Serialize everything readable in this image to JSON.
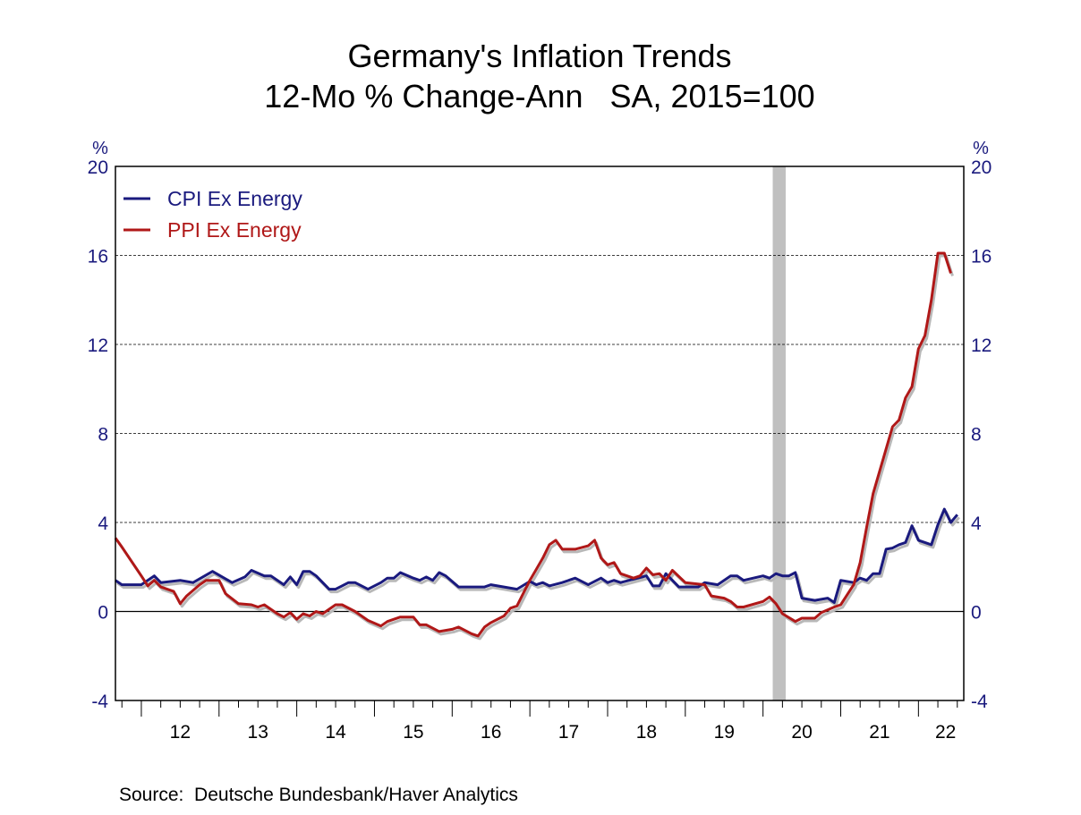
{
  "chart_data": {
    "type": "line",
    "title": "Germany's Inflation Trends",
    "subtitle": "12-Mo % Change-Ann   SA, 2015=100",
    "ylabel_left": "%",
    "ylabel_right": "%",
    "ylim": [
      -4,
      20
    ],
    "yticks": [
      -4,
      0,
      4,
      8,
      12,
      16,
      20
    ],
    "xlim": [
      "2011-09",
      "2022-08"
    ],
    "xtick_labels": [
      "12",
      "13",
      "14",
      "15",
      "16",
      "17",
      "18",
      "19",
      "20",
      "21",
      "22"
    ],
    "grid": "horizontal dashed",
    "legend": "top-left",
    "recession_shading": [
      "2020-03",
      "2020-04"
    ],
    "source": "Source:  Deutsche Bundesbank/Haver Analytics",
    "colors": {
      "cpi": "#1a1a7e",
      "ppi": "#b01818",
      "axis_text": "#1a1a7e",
      "shading": "#c0c0c0"
    },
    "series": [
      {
        "name": "CPI Ex Energy",
        "points": [
          [
            "2011-09",
            1.4
          ],
          [
            "2011-10",
            1.2
          ],
          [
            "2012-01",
            1.2
          ],
          [
            "2012-03",
            1.6
          ],
          [
            "2012-04",
            1.3
          ],
          [
            "2012-07",
            1.4
          ],
          [
            "2012-09",
            1.3
          ],
          [
            "2012-12",
            1.8
          ],
          [
            "2013-03",
            1.3
          ],
          [
            "2013-05",
            1.55
          ],
          [
            "2013-06",
            1.85
          ],
          [
            "2013-08",
            1.6
          ],
          [
            "2013-09",
            1.6
          ],
          [
            "2013-11",
            1.2
          ],
          [
            "2013-12",
            1.55
          ],
          [
            "2014-01",
            1.2
          ],
          [
            "2014-02",
            1.8
          ],
          [
            "2014-03",
            1.8
          ],
          [
            "2014-04",
            1.6
          ],
          [
            "2014-06",
            1.0
          ],
          [
            "2014-07",
            1.0
          ],
          [
            "2014-09",
            1.3
          ],
          [
            "2014-10",
            1.3
          ],
          [
            "2014-12",
            1.0
          ],
          [
            "2015-02",
            1.3
          ],
          [
            "2015-03",
            1.5
          ],
          [
            "2015-04",
            1.5
          ],
          [
            "2015-05",
            1.75
          ],
          [
            "2015-07",
            1.5
          ],
          [
            "2015-08",
            1.4
          ],
          [
            "2015-09",
            1.55
          ],
          [
            "2015-10",
            1.4
          ],
          [
            "2015-11",
            1.75
          ],
          [
            "2015-12",
            1.6
          ],
          [
            "2016-02",
            1.1
          ],
          [
            "2016-06",
            1.1
          ],
          [
            "2016-07",
            1.2
          ],
          [
            "2016-09",
            1.1
          ],
          [
            "2016-11",
            1.0
          ],
          [
            "2017-01",
            1.35
          ],
          [
            "2017-02",
            1.2
          ],
          [
            "2017-03",
            1.3
          ],
          [
            "2017-04",
            1.15
          ],
          [
            "2017-06",
            1.3
          ],
          [
            "2017-08",
            1.5
          ],
          [
            "2017-10",
            1.2
          ],
          [
            "2017-12",
            1.5
          ],
          [
            "2018-01",
            1.3
          ],
          [
            "2018-02",
            1.4
          ],
          [
            "2018-03",
            1.3
          ],
          [
            "2018-05",
            1.45
          ],
          [
            "2018-07",
            1.6
          ],
          [
            "2018-08",
            1.15
          ],
          [
            "2018-09",
            1.15
          ],
          [
            "2018-10",
            1.7
          ],
          [
            "2018-12",
            1.1
          ],
          [
            "2019-03",
            1.1
          ],
          [
            "2019-04",
            1.3
          ],
          [
            "2019-06",
            1.2
          ],
          [
            "2019-08",
            1.6
          ],
          [
            "2019-09",
            1.6
          ],
          [
            "2019-10",
            1.4
          ],
          [
            "2020-01",
            1.6
          ],
          [
            "2020-02",
            1.5
          ],
          [
            "2020-03",
            1.7
          ],
          [
            "2020-04",
            1.6
          ],
          [
            "2020-05",
            1.6
          ],
          [
            "2020-06",
            1.75
          ],
          [
            "2020-07",
            0.6
          ],
          [
            "2020-09",
            0.5
          ],
          [
            "2020-11",
            0.6
          ],
          [
            "2020-12",
            0.4
          ],
          [
            "2021-01",
            1.4
          ],
          [
            "2021-03",
            1.3
          ],
          [
            "2021-04",
            1.5
          ],
          [
            "2021-05",
            1.4
          ],
          [
            "2021-06",
            1.7
          ],
          [
            "2021-07",
            1.7
          ],
          [
            "2021-08",
            2.8
          ],
          [
            "2021-09",
            2.85
          ],
          [
            "2021-10",
            3.0
          ],
          [
            "2021-11",
            3.1
          ],
          [
            "2021-12",
            3.85
          ],
          [
            "2022-01",
            3.2
          ],
          [
            "2022-02",
            3.1
          ],
          [
            "2022-03",
            3.0
          ],
          [
            "2022-04",
            3.9
          ],
          [
            "2022-05",
            4.6
          ],
          [
            "2022-06",
            4.0
          ],
          [
            "2022-07",
            4.35
          ]
        ]
      },
      {
        "name": "PPI Ex Energy",
        "points": [
          [
            "2011-09",
            3.3
          ],
          [
            "2011-10",
            2.9
          ],
          [
            "2012-01",
            1.6
          ],
          [
            "2012-02",
            1.15
          ],
          [
            "2012-03",
            1.4
          ],
          [
            "2012-04",
            1.1
          ],
          [
            "2012-06",
            0.9
          ],
          [
            "2012-07",
            0.35
          ],
          [
            "2012-08",
            0.7
          ],
          [
            "2012-10",
            1.2
          ],
          [
            "2012-11",
            1.4
          ],
          [
            "2013-01",
            1.4
          ],
          [
            "2013-02",
            0.8
          ],
          [
            "2013-04",
            0.35
          ],
          [
            "2013-06",
            0.3
          ],
          [
            "2013-07",
            0.2
          ],
          [
            "2013-08",
            0.3
          ],
          [
            "2013-10",
            -0.1
          ],
          [
            "2013-11",
            -0.25
          ],
          [
            "2013-12",
            -0.05
          ],
          [
            "2014-01",
            -0.35
          ],
          [
            "2014-02",
            -0.1
          ],
          [
            "2014-03",
            -0.2
          ],
          [
            "2014-04",
            0.0
          ],
          [
            "2014-05",
            -0.1
          ],
          [
            "2014-07",
            0.3
          ],
          [
            "2014-08",
            0.3
          ],
          [
            "2014-10",
            0.0
          ],
          [
            "2014-12",
            -0.4
          ],
          [
            "2015-02",
            -0.65
          ],
          [
            "2015-03",
            -0.45
          ],
          [
            "2015-05",
            -0.25
          ],
          [
            "2015-07",
            -0.25
          ],
          [
            "2015-08",
            -0.6
          ],
          [
            "2015-09",
            -0.6
          ],
          [
            "2015-11",
            -0.9
          ],
          [
            "2016-01",
            -0.8
          ],
          [
            "2016-02",
            -0.7
          ],
          [
            "2016-04",
            -1.0
          ],
          [
            "2016-05",
            -1.1
          ],
          [
            "2016-06",
            -0.7
          ],
          [
            "2016-07",
            -0.5
          ],
          [
            "2016-09",
            -0.2
          ],
          [
            "2016-10",
            0.15
          ],
          [
            "2016-11",
            0.25
          ],
          [
            "2017-01",
            1.4
          ],
          [
            "2017-02",
            1.9
          ],
          [
            "2017-03",
            2.4
          ],
          [
            "2017-04",
            3.0
          ],
          [
            "2017-05",
            3.2
          ],
          [
            "2017-06",
            2.8
          ],
          [
            "2017-08",
            2.8
          ],
          [
            "2017-10",
            2.95
          ],
          [
            "2017-11",
            3.2
          ],
          [
            "2017-12",
            2.4
          ],
          [
            "2018-01",
            2.1
          ],
          [
            "2018-02",
            2.2
          ],
          [
            "2018-03",
            1.7
          ],
          [
            "2018-05",
            1.5
          ],
          [
            "2018-06",
            1.6
          ],
          [
            "2018-07",
            1.95
          ],
          [
            "2018-08",
            1.65
          ],
          [
            "2018-09",
            1.7
          ],
          [
            "2018-10",
            1.4
          ],
          [
            "2018-11",
            1.85
          ],
          [
            "2019-01",
            1.3
          ],
          [
            "2019-04",
            1.2
          ],
          [
            "2019-05",
            0.7
          ],
          [
            "2019-07",
            0.6
          ],
          [
            "2019-08",
            0.45
          ],
          [
            "2019-09",
            0.2
          ],
          [
            "2019-10",
            0.2
          ],
          [
            "2020-01",
            0.45
          ],
          [
            "2020-02",
            0.65
          ],
          [
            "2020-03",
            0.35
          ],
          [
            "2020-04",
            -0.1
          ],
          [
            "2020-06",
            -0.45
          ],
          [
            "2020-07",
            -0.3
          ],
          [
            "2020-09",
            -0.3
          ],
          [
            "2020-10",
            -0.05
          ],
          [
            "2020-12",
            0.2
          ],
          [
            "2021-01",
            0.3
          ],
          [
            "2021-03",
            1.2
          ],
          [
            "2021-04",
            2.2
          ],
          [
            "2021-05",
            3.8
          ],
          [
            "2021-06",
            5.3
          ],
          [
            "2021-09",
            8.3
          ],
          [
            "2021-10",
            8.6
          ],
          [
            "2021-11",
            9.6
          ],
          [
            "2021-12",
            10.1
          ],
          [
            "2022-01",
            11.8
          ],
          [
            "2022-02",
            12.4
          ],
          [
            "2022-03",
            14.0
          ],
          [
            "2022-04",
            16.1
          ],
          [
            "2022-05",
            16.1
          ],
          [
            "2022-06",
            15.2
          ]
        ]
      }
    ]
  }
}
